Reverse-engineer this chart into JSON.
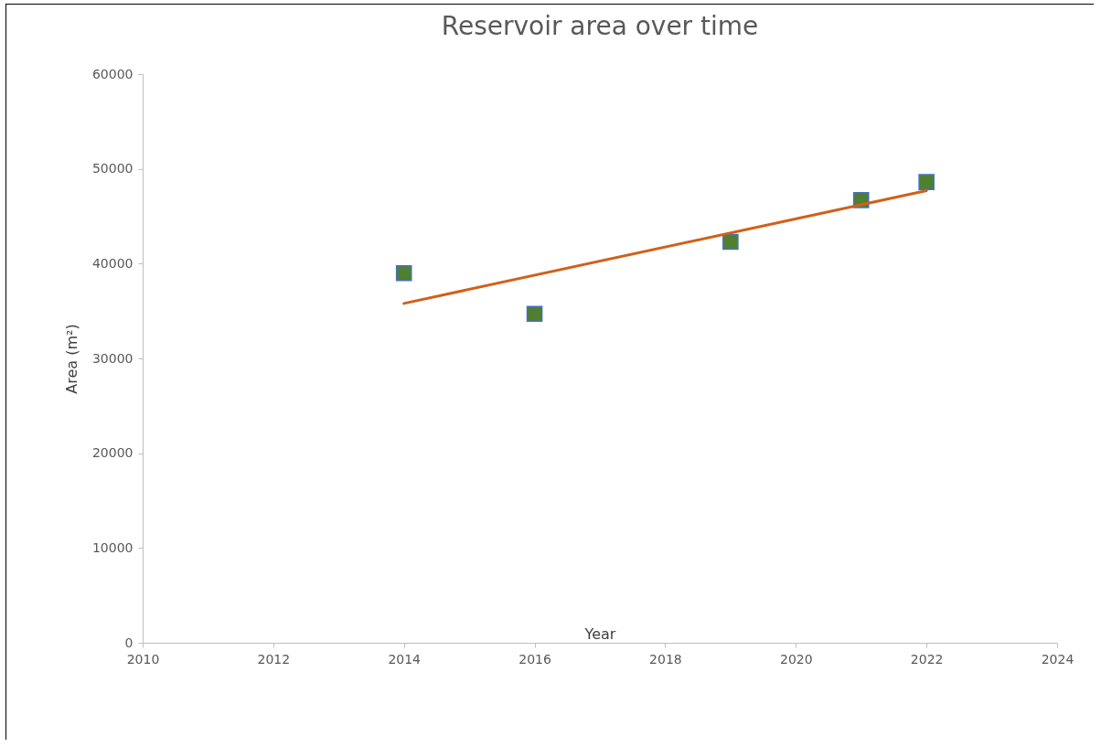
{
  "chart_data": {
    "type": "scatter",
    "title": "Reservoir area over time",
    "xlabel": "Year",
    "ylabel": "Area (m²)",
    "xlim": [
      2010,
      2024
    ],
    "xticks": [
      2010,
      2012,
      2014,
      2016,
      2018,
      2020,
      2022,
      2024
    ],
    "ylim": [
      0,
      60000
    ],
    "yticks": [
      0,
      10000,
      20000,
      30000,
      40000,
      50000,
      60000
    ],
    "series": [
      {
        "color": "#4f7f2f",
        "marker": "square",
        "x": [
          2014,
          2016,
          2019,
          2021,
          2022
        ],
        "values": [
          39000,
          34700,
          42300,
          46700,
          48600
        ]
      },
      {
        "type": "line",
        "color": "#d0601a",
        "x": [
          2014,
          2022
        ],
        "values": [
          35800,
          47700
        ]
      }
    ]
  }
}
